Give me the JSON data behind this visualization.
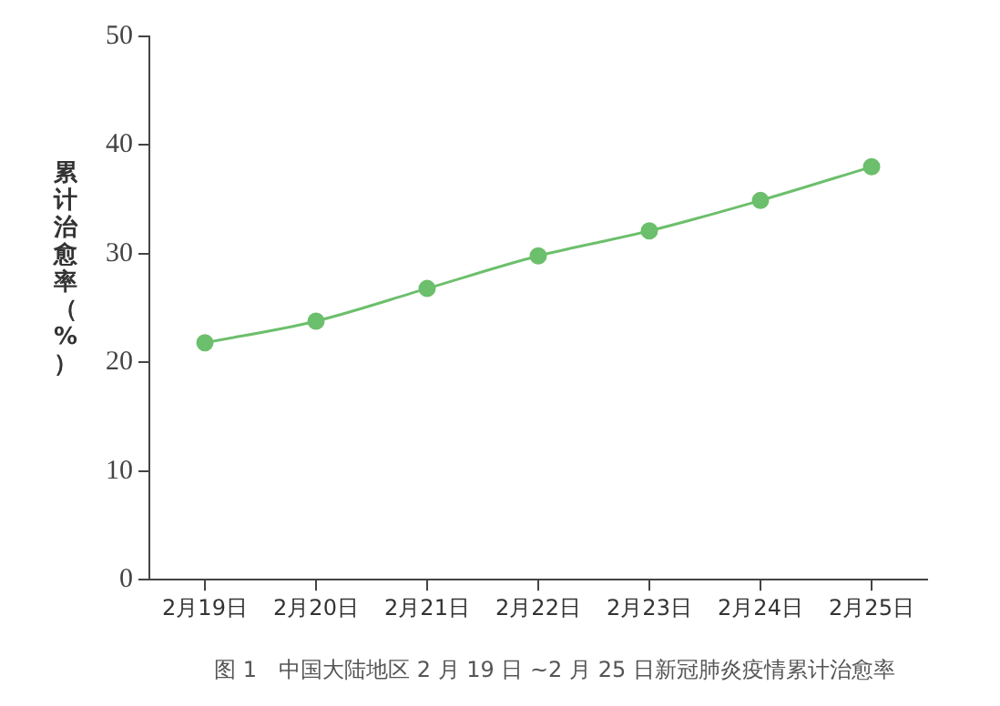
{
  "chart_data": {
    "type": "line",
    "ylabel": "累计治愈率（%）",
    "categories": [
      "2月19日",
      "2月20日",
      "2月21日",
      "2月22日",
      "2月23日",
      "2月24日",
      "2月25日"
    ],
    "series": [
      {
        "color": "#6cbf6c",
        "values": [
          21.8,
          23.8,
          26.8,
          29.8,
          32.1,
          34.9,
          38.0
        ]
      }
    ],
    "ylim": [
      0,
      50
    ],
    "yticks": [
      0,
      10,
      20,
      30,
      40,
      50
    ],
    "grid": false,
    "legend": false,
    "marker": "circle",
    "line_style": "solid",
    "annotations": [
      "图 1　中国大陆地区 2 月 19 日 ~2 月 25 日新冠肺炎疫情累计治愈率"
    ]
  }
}
